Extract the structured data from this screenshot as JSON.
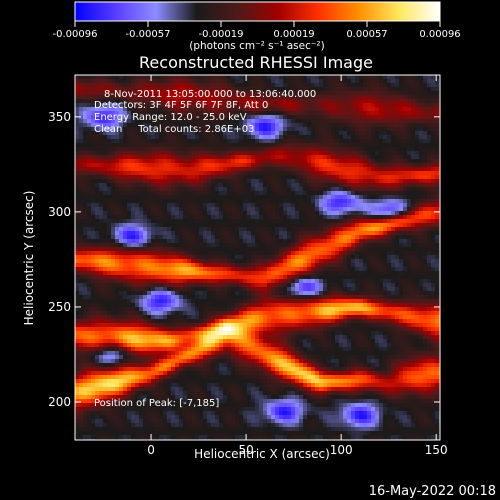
{
  "colorbar": {
    "ticks": [
      "-0.00096",
      "-0.00057",
      "-0.00019",
      "0.00019",
      "0.00057",
      "0.00096"
    ],
    "unit_label": "(photons cm⁻² s⁻¹ asec⁻²)",
    "colors": [
      "#0000ff",
      "#5a3cff",
      "#8c8cff",
      "#1a1a1a",
      "#4d1a1a",
      "#a00000",
      "#ff3000",
      "#ff9000",
      "#ffe860",
      "#ffffff"
    ]
  },
  "chart_data": {
    "type": "heatmap",
    "title": "Reconstructed RHESSI Image",
    "xlabel": "Heliocentric X (arcsec)",
    "ylabel": "Heliocentric Y (arcsec)",
    "xlim": [
      -40,
      152
    ],
    "ylim": [
      180,
      372
    ],
    "xticks": [
      0,
      50,
      100,
      150
    ],
    "yticks": [
      200,
      250,
      300,
      350
    ],
    "annotations": [
      " 8-Nov-2011 13:05:00.000 to 13:06:40.000",
      "Detectors: 3F 4F 5F 6F 7F 8F, Att 0",
      "Energy Range: 12.0 - 25.0 keV",
      "Clean     Total counts: 2.86E+03"
    ],
    "peak_label": "Position of Peak: [-7,185]",
    "value_range": [
      -0.00096,
      0.00096
    ],
    "bands": [
      {
        "cx": [
          -40,
          10,
          60,
          110,
          152
        ],
        "cy": [
          365,
          362,
          357,
          355,
          352
        ],
        "amp": 0.0004
      },
      {
        "cx": [
          -40,
          20,
          70,
          120,
          152
        ],
        "cy": [
          325,
          322,
          330,
          318,
          320
        ],
        "amp": 0.0006
      },
      {
        "cx": [
          -40,
          10,
          60,
          110,
          152
        ],
        "cy": [
          275,
          270,
          265,
          290,
          300
        ],
        "amp": 0.00085
      },
      {
        "cx": [
          -40,
          10,
          60,
          110,
          152
        ],
        "cy": [
          235,
          232,
          245,
          250,
          242
        ],
        "amp": 0.0009
      },
      {
        "cx": [
          -40,
          0,
          40,
          90,
          152
        ],
        "cy": [
          205,
          215,
          235,
          210,
          215
        ],
        "amp": 0.00096
      }
    ],
    "blue_spots": [
      [
        -25,
        350
      ],
      [
        60,
        345
      ],
      [
        100,
        305
      ],
      [
        125,
        300
      ],
      [
        -10,
        287
      ],
      [
        80,
        260
      ],
      [
        5,
        253
      ],
      [
        -20,
        225
      ],
      [
        110,
        193
      ],
      [
        125,
        215
      ],
      [
        70,
        195
      ]
    ]
  },
  "footer": {
    "timestamp": "16-May-2022 00:18"
  }
}
